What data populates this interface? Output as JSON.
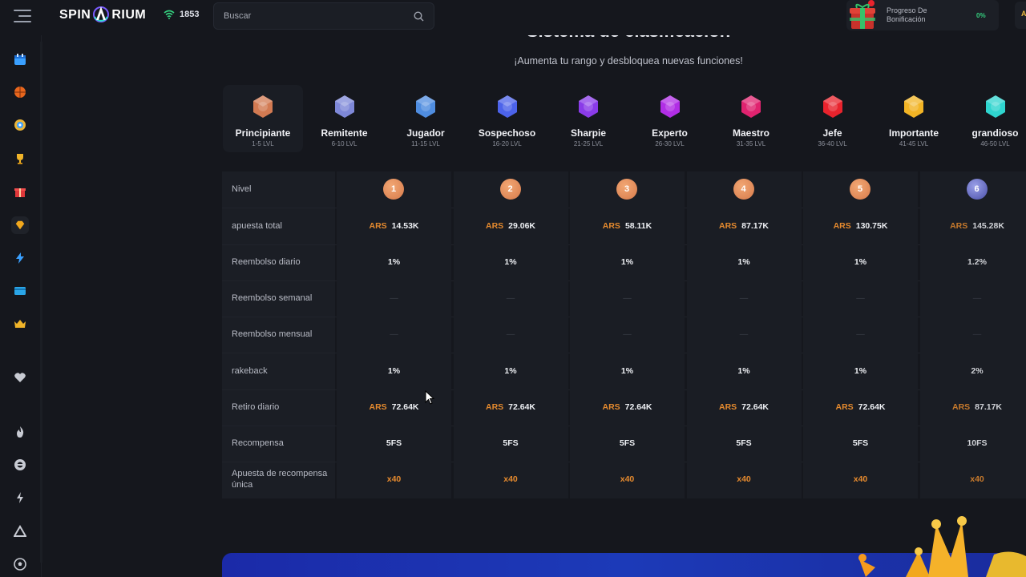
{
  "header": {
    "logo": {
      "left": "SPIN",
      "right": "RIUM"
    },
    "online_count": "1853",
    "search_placeholder": "Buscar",
    "bonus": {
      "label": "Progreso De Bonificación",
      "percent": "0%"
    },
    "edge_text": "A"
  },
  "sidebar": {
    "icons": [
      "calendar-icon",
      "basketball-icon",
      "roulette-icon",
      "trophy-icon",
      "gift-icon",
      "vip-gem-icon",
      "lightning-icon",
      "card-icon",
      "crown-icon",
      "heart-icon",
      "fire-icon",
      "chip-icon",
      "bolt-icon",
      "triangle-icon",
      "soccer-icon"
    ]
  },
  "page": {
    "title": "Sistema de clasificación",
    "subtitle": "¡Aumenta tu rango y desbloquea nuevas funciones!"
  },
  "ranks": [
    {
      "name": "Principiante",
      "levels": "1-5 LVL",
      "color": "#d27a52",
      "active": true
    },
    {
      "name": "Remitente",
      "levels": "6-10 LVL",
      "color": "#7e88d8"
    },
    {
      "name": "Jugador",
      "levels": "11-15 LVL",
      "color": "#4f8de0"
    },
    {
      "name": "Sospechoso",
      "levels": "16-20 LVL",
      "color": "#4c63ea"
    },
    {
      "name": "Sharpie",
      "levels": "21-25 LVL",
      "color": "#8a3be8"
    },
    {
      "name": "Experto",
      "levels": "26-30 LVL",
      "color": "#b12ee6"
    },
    {
      "name": "Maestro",
      "levels": "31-35 LVL",
      "color": "#e0236f"
    },
    {
      "name": "Jefe",
      "levels": "36-40 LVL",
      "color": "#e8232d"
    },
    {
      "name": "Importante",
      "levels": "41-45 LVL",
      "color": "#f2b425"
    },
    {
      "name": "grandioso",
      "levels": "46-50 LVL",
      "color": "#2fd5cf"
    }
  ],
  "table": {
    "row_labels": [
      "Nivel",
      "apuesta total",
      "Reembolso diario",
      "Reembolso semanal",
      "Reembolso mensual",
      "rakeback",
      "Retiro diario",
      "Recompensa",
      "Apuesta de recompensa única"
    ],
    "currency": "ARS",
    "columns": [
      {
        "level": "1",
        "total_bet": "14.53K",
        "daily": "1%",
        "weekly": "—",
        "monthly": "—",
        "rakeback": "1%",
        "withdraw": "72.64K",
        "reward": "5FS",
        "wager": "x40"
      },
      {
        "level": "2",
        "total_bet": "29.06K",
        "daily": "1%",
        "weekly": "—",
        "monthly": "—",
        "rakeback": "1%",
        "withdraw": "72.64K",
        "reward": "5FS",
        "wager": "x40"
      },
      {
        "level": "3",
        "total_bet": "58.11K",
        "daily": "1%",
        "weekly": "—",
        "monthly": "—",
        "rakeback": "1%",
        "withdraw": "72.64K",
        "reward": "5FS",
        "wager": "x40"
      },
      {
        "level": "4",
        "total_bet": "87.17K",
        "daily": "1%",
        "weekly": "—",
        "monthly": "—",
        "rakeback": "1%",
        "withdraw": "72.64K",
        "reward": "5FS",
        "wager": "x40"
      },
      {
        "level": "5",
        "total_bet": "130.75K",
        "daily": "1%",
        "weekly": "—",
        "monthly": "—",
        "rakeback": "1%",
        "withdraw": "72.64K",
        "reward": "5FS",
        "wager": "x40"
      },
      {
        "level": "6",
        "total_bet": "145.28K",
        "daily": "1.2%",
        "weekly": "—",
        "monthly": "—",
        "rakeback": "2%",
        "withdraw": "87.17K",
        "reward": "10FS",
        "wager": "x40"
      }
    ]
  }
}
